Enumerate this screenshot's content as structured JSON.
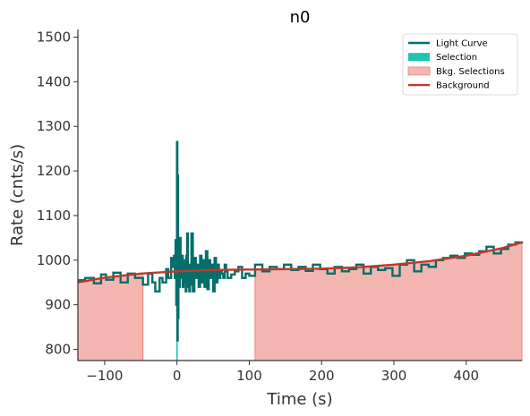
{
  "chart_data": {
    "type": "line",
    "title": "n0",
    "xlabel": "Time (s)",
    "ylabel": "Rate (cnts/s)",
    "xlim": [
      -137,
      477
    ],
    "ylim": [
      775,
      1517
    ],
    "x_ticks": [
      -100,
      0,
      100,
      200,
      300,
      400
    ],
    "x_tick_labels": [
      "−100",
      "0",
      "100",
      "200",
      "300",
      "400"
    ],
    "y_ticks": [
      800,
      900,
      1000,
      1100,
      1200,
      1300,
      1400,
      1500
    ],
    "y_tick_labels": [
      "800",
      "900",
      "1000",
      "1100",
      "1200",
      "1300",
      "1400",
      "1500"
    ],
    "legend": {
      "placement": "top-right",
      "entries": [
        {
          "label": "Light Curve",
          "kind": "line",
          "color": "#066e6a"
        },
        {
          "label": "Selection",
          "kind": "patch",
          "color": "#1ec4b4"
        },
        {
          "label": "Bkg. Selections",
          "kind": "patch",
          "color": "#f4b6b0"
        },
        {
          "label": "Background",
          "kind": "line",
          "color": "#c0392b"
        }
      ]
    },
    "colors": {
      "light_curve": "#066e6a",
      "selection": "#1ec4b4",
      "bkg_fill": "#f4b6b0",
      "bkg_edge": "#e8857c",
      "background": "#c0392b",
      "axes": "#333333"
    },
    "bkg_selections": [
      [
        -137,
        -47
      ],
      [
        108,
        477
      ]
    ],
    "source_selection": [
      -1,
      1
    ],
    "background_curve": {
      "x": [
        -137,
        -100,
        -50,
        0,
        50,
        100,
        150,
        200,
        250,
        300,
        350,
        400,
        450,
        477
      ],
      "y": [
        950,
        961,
        970,
        975,
        978,
        979,
        980,
        981,
        984,
        990,
        998,
        1010,
        1027,
        1040
      ]
    },
    "light_curve": {
      "x": [
        -137,
        -127,
        -115,
        -105,
        -98,
        -88,
        -78,
        -68,
        -58,
        -47,
        -40,
        -34,
        -30,
        -24,
        -20,
        -15,
        -12,
        -8,
        -6,
        -4,
        -3,
        -2,
        -1,
        0,
        0.5,
        1,
        1.5,
        2,
        3,
        4,
        5,
        6,
        7,
        8,
        9,
        10,
        11,
        12,
        13,
        14,
        15,
        16,
        17,
        18,
        19,
        20,
        22,
        24,
        26,
        28,
        30,
        32,
        34,
        36,
        38,
        40,
        42,
        44,
        46,
        48,
        50,
        52,
        54,
        56,
        58,
        60,
        62,
        64,
        66,
        68,
        70,
        75,
        80,
        85,
        90,
        95,
        100,
        108,
        118,
        128,
        138,
        148,
        158,
        168,
        178,
        188,
        198,
        208,
        218,
        228,
        238,
        248,
        258,
        268,
        278,
        288,
        298,
        308,
        318,
        328,
        338,
        348,
        358,
        368,
        378,
        388,
        398,
        408,
        418,
        428,
        438,
        448,
        458,
        468,
        477
      ],
      "y": [
        955,
        960,
        948,
        968,
        956,
        972,
        950,
        970,
        960,
        945,
        970,
        950,
        930,
        960,
        950,
        980,
        960,
        1005,
        985,
        1010,
        960,
        1045,
        900,
        1265,
        820,
        1190,
        870,
        1030,
        940,
        1050,
        960,
        980,
        1010,
        940,
        990,
        950,
        1000,
        930,
        1010,
        1060,
        940,
        990,
        930,
        970,
        945,
        1060,
        930,
        1005,
        960,
        990,
        940,
        1010,
        950,
        1000,
        940,
        1020,
        935,
        1000,
        960,
        990,
        930,
        1005,
        950,
        990,
        960,
        975,
        970,
        960,
        990,
        975,
        960,
        968,
        975,
        985,
        960,
        970,
        965,
        990,
        975,
        985,
        980,
        990,
        978,
        985,
        976,
        990,
        980,
        970,
        985,
        975,
        980,
        990,
        970,
        985,
        978,
        982,
        965,
        990,
        1000,
        975,
        990,
        985,
        1000,
        1005,
        1010,
        1005,
        1015,
        1012,
        1020,
        1030,
        1015,
        1025,
        1035,
        1040,
        1042
      ]
    }
  }
}
